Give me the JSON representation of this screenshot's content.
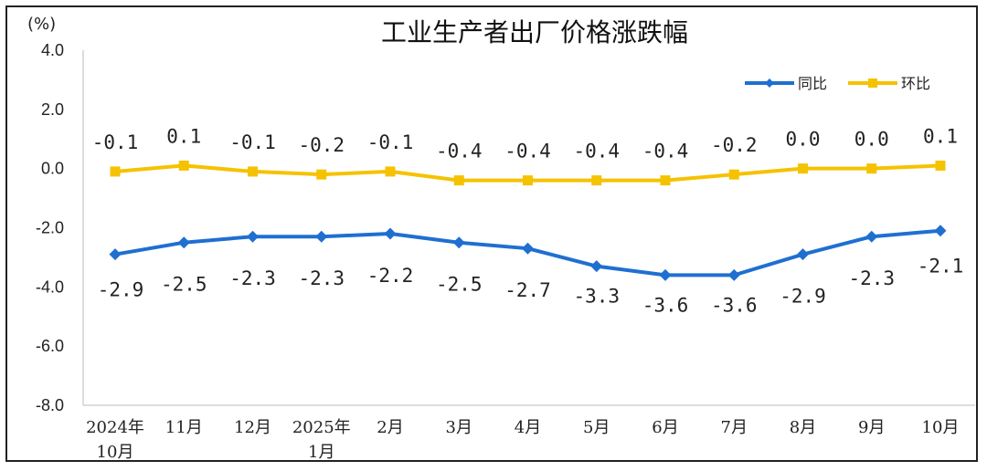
{
  "chart_data": {
    "type": "line",
    "title": "工业生产者出厂价格涨跌幅",
    "unit_label": "(%)",
    "ylim": [
      -8.0,
      4.0
    ],
    "yticks": [
      "4.0",
      "2.0",
      "0.0",
      "-2.0",
      "-4.0",
      "-6.0",
      "-8.0"
    ],
    "ytick_values": [
      4,
      2,
      0,
      -2,
      -4,
      -6,
      -8
    ],
    "categories": [
      [
        "2024年",
        "10月"
      ],
      [
        "11月"
      ],
      [
        "12月"
      ],
      [
        "2025年",
        "1月"
      ],
      [
        "2月"
      ],
      [
        "3月"
      ],
      [
        "4月"
      ],
      [
        "5月"
      ],
      [
        "6月"
      ],
      [
        "7月"
      ],
      [
        "8月"
      ],
      [
        "9月"
      ],
      [
        "10月"
      ]
    ],
    "series": [
      {
        "name": "同比",
        "color": "#1f6fd1",
        "marker": "diamond",
        "values": [
          -2.9,
          -2.5,
          -2.3,
          -2.3,
          -2.2,
          -2.5,
          -2.7,
          -3.3,
          -3.6,
          -3.6,
          -2.9,
          -2.3,
          -2.1
        ],
        "labels": [
          "-2.9",
          "-2.5",
          "-2.3",
          "-2.3",
          "-2.2",
          "-2.5",
          "-2.7",
          "-3.3",
          "-3.6",
          "-3.6",
          "-2.9",
          "-2.3",
          "-2.1"
        ]
      },
      {
        "name": "环比",
        "color": "#f5c200",
        "marker": "square",
        "values": [
          -0.1,
          0.1,
          -0.1,
          -0.2,
          -0.1,
          -0.4,
          -0.4,
          -0.4,
          -0.4,
          -0.2,
          0.0,
          0.0,
          0.1
        ],
        "labels": [
          "-0.1",
          "0.1",
          "-0.1",
          "-0.2",
          "-0.1",
          "-0.4",
          "-0.4",
          "-0.4",
          "-0.4",
          "-0.2",
          "0.0",
          "0.0",
          "0.1"
        ]
      }
    ],
    "legend_position": "top-right",
    "grid": false
  }
}
